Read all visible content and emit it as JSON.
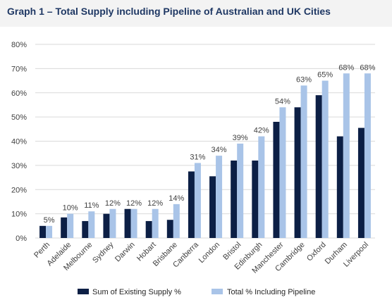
{
  "chart_data": {
    "type": "bar",
    "title": "Graph 1 – Total Supply including Pipeline of Australian and UK Cities",
    "xlabel": "",
    "ylabel": "",
    "ylim": [
      0,
      80
    ],
    "yticks": [
      "0%",
      "10%",
      "20%",
      "30%",
      "40%",
      "50%",
      "60%",
      "70%",
      "80%"
    ],
    "ytick_values": [
      0,
      10,
      20,
      30,
      40,
      50,
      60,
      70,
      80
    ],
    "grid": true,
    "legend_position": "bottom",
    "categories": [
      "Perth",
      "Adelaide",
      "Melbourne",
      "Sydney",
      "Darwin",
      "Hobart",
      "Brisbane",
      "Canberra",
      "London",
      "Bristol",
      "Edinburgh",
      "Manchester",
      "Cambridge",
      "Oxford",
      "Durham",
      "Liverpool"
    ],
    "series": [
      {
        "name": "Sum of Existing Supply %",
        "color": "#0c1f45",
        "values": [
          5,
          8.5,
          7,
          10,
          12,
          7,
          7.5,
          27.5,
          25.5,
          32,
          32,
          48,
          54,
          59,
          42,
          45.5
        ]
      },
      {
        "name": "Total % Including Pipeline",
        "color": "#a9c4e8",
        "values": [
          5,
          10,
          11,
          12,
          12,
          12,
          14,
          31,
          34,
          39,
          42,
          54,
          63,
          65,
          68,
          68
        ],
        "data_labels": [
          "5%",
          "10%",
          "11%",
          "12%",
          "12%",
          "12%",
          "14%",
          "31%",
          "34%",
          "39%",
          "42%",
          "54%",
          "63%",
          "65%",
          "68%",
          "68%"
        ]
      }
    ]
  }
}
